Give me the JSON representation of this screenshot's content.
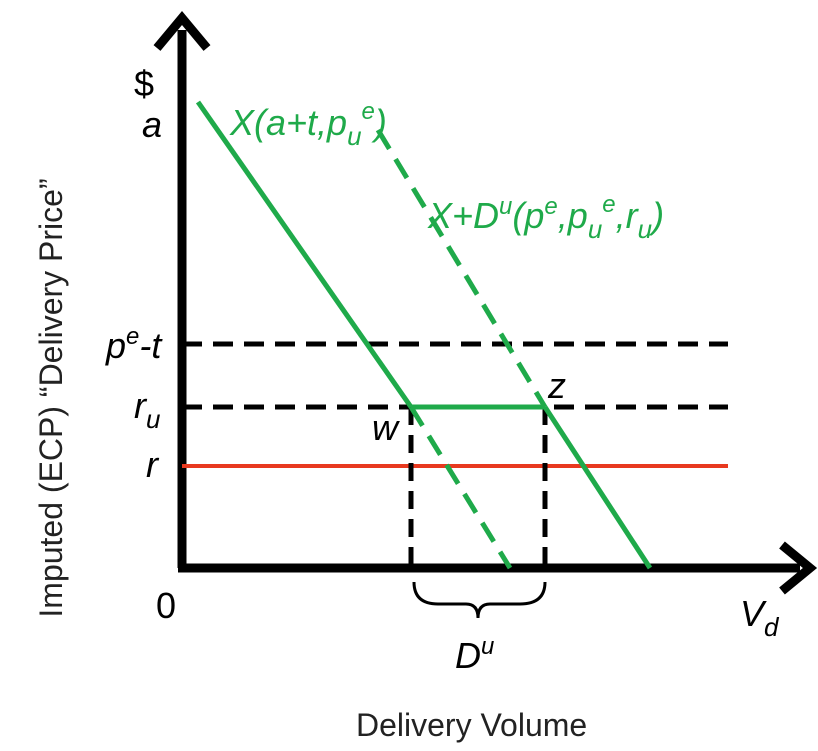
{
  "axes": {
    "y_symbol": "$",
    "y_title": "Imputed (ECP) “Delivery Price”",
    "x_title": "Delivery Volume",
    "origin": "0",
    "x_symbol_base": "V",
    "x_symbol_sub": "d"
  },
  "price_labels": {
    "a": "a",
    "pe_t": {
      "base": "p",
      "sup": "e",
      "rest": "-t"
    },
    "ru": {
      "base": "r",
      "sub": "u"
    },
    "r": "r"
  },
  "curves": {
    "x_curve": {
      "text1": "X(a+t,p",
      "sub": "u",
      "sup": "e",
      "text2": ")"
    },
    "xd_curve": {
      "text1": "X+D",
      "sup1": "u",
      "text2": "(p",
      "sup2": "e",
      "text3": ",p",
      "sub3": "u",
      "sup3": "e",
      "text4": ",r",
      "sub4": "u",
      "text5": ")"
    }
  },
  "points": {
    "w": "w",
    "z": "z"
  },
  "brace_label": {
    "base": "D",
    "sup": "u"
  },
  "colors": {
    "supply": "#1faa4a",
    "r_line": "#e8391f",
    "axis": "#000000",
    "dashed": "#000000"
  }
}
